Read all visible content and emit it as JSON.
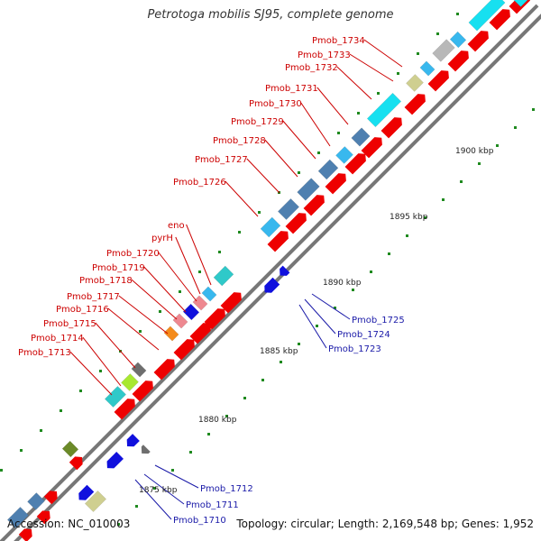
{
  "title": "Petrotoga mobilis SJ95, complete genome",
  "footer": {
    "accession": "Accession: NC_010003",
    "summary": "Topology: circular; Length: 2,169,548 bp; Genes: 1,952"
  },
  "colors": {
    "cds_forward_red": "#ee0000",
    "cds_reverse_blue": "#1010dd",
    "label_red": "#cc0000",
    "label_blue": "#1a1aa8",
    "cog_steelblue": "#4f80b0",
    "cog_cyan": "#17e0f0",
    "cog_aqua": "#2fc9c9",
    "cog_skyblue": "#38b8ee",
    "cog_lime": "#a8e830",
    "cog_pink": "#ee8890",
    "cog_orange": "#f48a1a",
    "cog_gray": "#6e6e6e",
    "cog_khaki": "#cfcf90",
    "cog_olive": "#6b8a28",
    "tick_green": "#1f8a1f"
  },
  "kbp_labels": [
    "1875 kbp",
    "1880 kbp",
    "1885 kbp",
    "1890 kbp",
    "1895 kbp",
    "1900 kbp"
  ],
  "gene_labels_forward": [
    "Pmob_1713",
    "Pmob_1714",
    "Pmob_1715",
    "Pmob_1716",
    "Pmob_1717",
    "Pmob_1718",
    "Pmob_1719",
    "Pmob_1720",
    "pyrH",
    "eno",
    "Pmob_1726",
    "Pmob_1727",
    "Pmob_1728",
    "Pmob_1729",
    "Pmob_1730",
    "Pmob_1731",
    "Pmob_1732",
    "Pmob_1733",
    "Pmob_1734"
  ],
  "gene_labels_reverse": [
    "Pmob_1710",
    "Pmob_1711",
    "Pmob_1712",
    "Pmob_1723",
    "Pmob_1724",
    "Pmob_1725"
  ]
}
